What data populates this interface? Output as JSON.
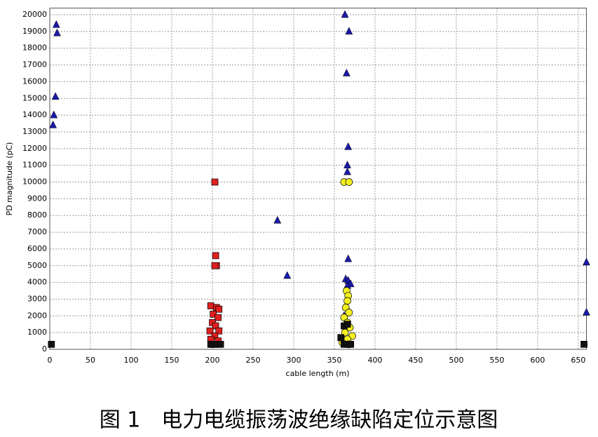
{
  "chart_data": {
    "type": "scatter",
    "x_label": "cable length (m)",
    "y_label": "PD magnitude (pC)",
    "caption": "图 1　电力电缆振荡波绝缘缺陷定位示意图",
    "xlim": [
      0,
      660
    ],
    "ylim": [
      0,
      20400
    ],
    "xticks": [
      0,
      50,
      100,
      150,
      200,
      250,
      300,
      350,
      400,
      450,
      500,
      550,
      600,
      650
    ],
    "yticks": [
      0,
      1000,
      2000,
      3000,
      4000,
      5000,
      6000,
      7000,
      8000,
      9000,
      10000,
      11000,
      12000,
      13000,
      14000,
      15000,
      16000,
      17000,
      18000,
      19000,
      20000
    ],
    "grid": true,
    "series": [
      {
        "color": "#1a1aa8",
        "marker": "triangle",
        "x": [
          8,
          9,
          7,
          5,
          4,
          363,
          368,
          365,
          367,
          366,
          366,
          280,
          292,
          367,
          364,
          367,
          370,
          366,
          362,
          660,
          660
        ],
        "values": [
          19400,
          18900,
          15100,
          14000,
          13400,
          20000,
          19000,
          16500,
          12100,
          11000,
          10600,
          7700,
          4400,
          5400,
          4200,
          4100,
          3900,
          3800,
          2000,
          5200,
          2200
        ]
      },
      {
        "color": "#e02020",
        "marker": "square",
        "x": [
          203,
          204,
          205,
          203,
          198,
          205,
          208,
          201,
          207,
          200,
          204,
          197,
          208,
          203,
          198,
          207,
          200
        ],
        "values": [
          10000,
          5600,
          5000,
          5000,
          2600,
          2500,
          2400,
          2100,
          1900,
          1600,
          1400,
          1100,
          1100,
          800,
          600,
          500,
          300
        ]
      },
      {
        "color": "#f5f020",
        "marker": "circle",
        "x": [
          362,
          368,
          365,
          367,
          366,
          364,
          368,
          362,
          366,
          369,
          363,
          372,
          366,
          360,
          368
        ],
        "values": [
          10000,
          10000,
          3500,
          3200,
          2900,
          2500,
          2200,
          1900,
          1600,
          1300,
          1000,
          800,
          600,
          400,
          300
        ]
      },
      {
        "color": "#111111",
        "marker": "square",
        "x": [
          2,
          657,
          198,
          202,
          206,
          210,
          362,
          366,
          370,
          358,
          362,
          366
        ],
        "values": [
          300,
          300,
          300,
          300,
          300,
          300,
          300,
          300,
          300,
          700,
          1400,
          1500
        ]
      }
    ]
  }
}
